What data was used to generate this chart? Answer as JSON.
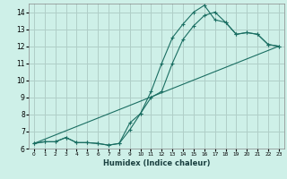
{
  "xlabel": "Humidex (Indice chaleur)",
  "xlim": [
    -0.5,
    23.5
  ],
  "ylim": [
    6,
    14.5
  ],
  "xticks": [
    0,
    1,
    2,
    3,
    4,
    5,
    6,
    7,
    8,
    9,
    10,
    11,
    12,
    13,
    14,
    15,
    16,
    17,
    18,
    19,
    20,
    21,
    22,
    23
  ],
  "yticks": [
    6,
    7,
    8,
    9,
    10,
    11,
    12,
    13,
    14
  ],
  "background_color": "#cef0e8",
  "grid_color": "#b0cec8",
  "line_color": "#1a6e62",
  "line1_x": [
    0,
    1,
    2,
    3,
    4,
    5,
    6,
    7,
    8,
    9,
    10,
    11,
    12,
    13,
    14,
    15,
    16,
    17,
    18,
    19,
    20,
    21,
    22,
    23
  ],
  "line1_y": [
    6.3,
    6.4,
    6.4,
    6.65,
    6.35,
    6.35,
    6.3,
    6.2,
    6.3,
    7.1,
    8.05,
    9.35,
    11.0,
    12.5,
    13.3,
    14.0,
    14.4,
    13.55,
    13.4,
    12.7,
    12.8,
    12.7,
    12.1,
    12.0
  ],
  "line2_x": [
    0,
    1,
    2,
    3,
    4,
    5,
    6,
    7,
    8,
    9,
    10,
    11,
    12,
    13,
    14,
    15,
    16,
    17,
    18,
    19,
    20,
    21,
    22,
    23
  ],
  "line2_y": [
    6.3,
    6.4,
    6.4,
    6.65,
    6.35,
    6.35,
    6.3,
    6.2,
    6.3,
    7.5,
    8.05,
    9.0,
    9.35,
    11.0,
    12.4,
    13.2,
    13.8,
    14.0,
    13.4,
    12.7,
    12.8,
    12.7,
    12.1,
    12.0
  ],
  "line3_x": [
    0,
    23
  ],
  "line3_y": [
    6.3,
    12.0
  ]
}
